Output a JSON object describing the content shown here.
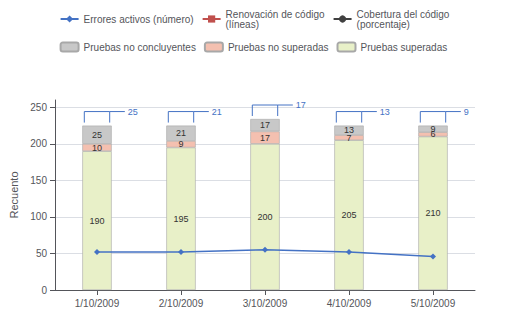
{
  "chart_data": {
    "type": "bar",
    "ylabel": "Recuento",
    "categories": [
      "1/10/2009",
      "2/10/2009",
      "3/10/2009",
      "4/10/2009",
      "5/10/2009"
    ],
    "stacked": true,
    "series": [
      {
        "name": "Pruebas superadas",
        "type": "bar",
        "color": "#e8f0c8",
        "values": [
          190,
          195,
          200,
          205,
          210
        ],
        "data_labels": true
      },
      {
        "name": "Pruebas no superadas",
        "type": "bar",
        "color": "#f4c0b0",
        "values": [
          10,
          9,
          17,
          7,
          6
        ],
        "data_labels": true
      },
      {
        "name": "Pruebas no concluyentes",
        "type": "bar",
        "color": "#c8c8c8",
        "values": [
          25,
          21,
          17,
          13,
          9
        ],
        "data_labels": true
      },
      {
        "name": "Errores activos (número)",
        "type": "line",
        "color": "#4472c4",
        "marker": "diamond",
        "values": [
          52,
          52,
          55,
          52,
          46
        ]
      },
      {
        "name": "Renovación de código\n(líneas)",
        "type": "line",
        "color": "#c0504d",
        "marker": "square",
        "values": [
          null,
          null,
          null,
          null,
          null
        ]
      },
      {
        "name": "Cobertura del código\n(porcentaje)",
        "type": "line",
        "color": "#404040",
        "marker": "circle",
        "values": [
          null,
          null,
          null,
          null,
          null
        ]
      }
    ],
    "ylim": [
      0,
      260
    ],
    "yticks": [
      0,
      50,
      100,
      150,
      200,
      250
    ],
    "grid": true,
    "legend": "top"
  }
}
